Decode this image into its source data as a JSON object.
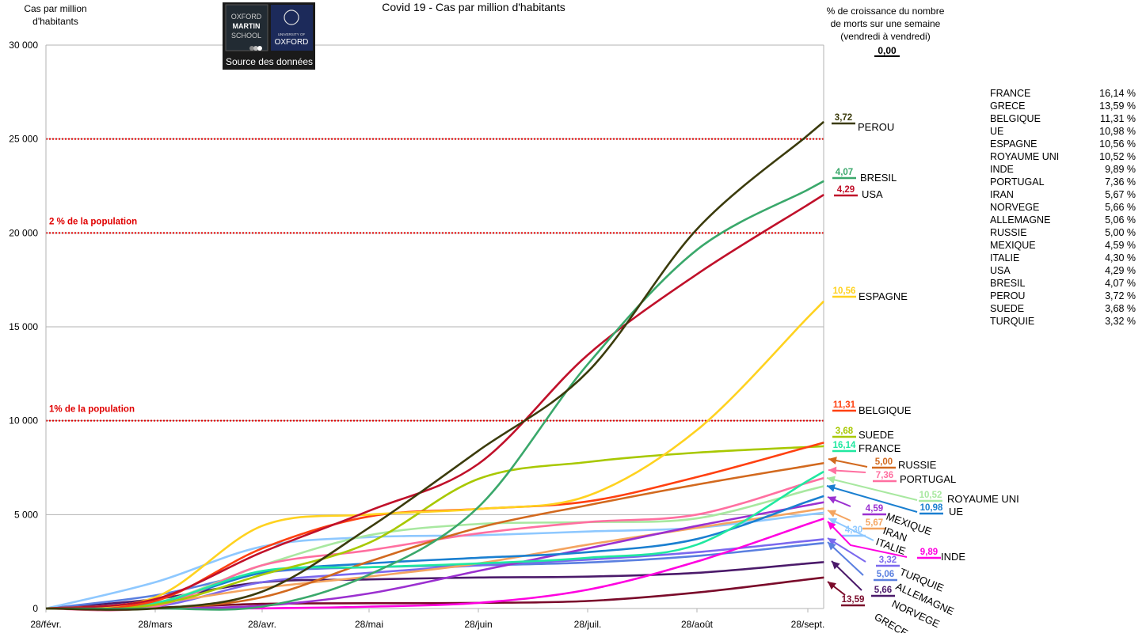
{
  "chart_data": {
    "type": "line",
    "title": "Covid 19 - Cas par million d'habitants",
    "ylabel": [
      "Cas par million",
      "d'habitants"
    ],
    "xlabel": "",
    "x": [
      "28/févr.",
      "28/mars",
      "28/avr.",
      "28/mai",
      "28/juin",
      "28/juil.",
      "28/août",
      "28/sept."
    ],
    "ylim": [
      0,
      30000
    ],
    "yticks": [
      "0",
      "5 000",
      "10 000",
      "15 000",
      "20 000",
      "25 000",
      "30 000"
    ],
    "ytick_values": [
      0,
      5000,
      10000,
      15000,
      20000,
      25000,
      30000
    ],
    "grid": true,
    "reference_lines": [
      {
        "value": 25000,
        "label": "",
        "color": "#e00000"
      },
      {
        "value": 20000,
        "label": "2 % de la population",
        "color": "#e00000"
      },
      {
        "value": 10000,
        "label": "1% de la population",
        "color": "#e00000"
      }
    ],
    "series": [
      {
        "name": "PEROU",
        "label_value": "3,72",
        "color": "#3b3b0c",
        "values": [
          0,
          0,
          900,
          4300,
          8400,
          12600,
          20200,
          25200
        ]
      },
      {
        "name": "BRESIL",
        "label_value": "4,07",
        "color": "#3aa86b",
        "values": [
          0,
          0,
          100,
          1800,
          5400,
          13000,
          19100,
          22300
        ]
      },
      {
        "name": "USA",
        "label_value": "4,29",
        "color": "#c0102a",
        "values": [
          0,
          500,
          3000,
          5200,
          7700,
          13500,
          17800,
          21500
        ]
      },
      {
        "name": "ESPAGNE",
        "label_value": "10,56",
        "color": "#ffd21f",
        "values": [
          0,
          600,
          4400,
          5000,
          5300,
          6000,
          9500,
          15500
        ]
      },
      {
        "name": "BELGIQUE",
        "label_value": "11,31",
        "color": "#ff4010",
        "values": [
          0,
          400,
          3200,
          4900,
          5300,
          5700,
          7000,
          8600
        ]
      },
      {
        "name": "SUEDE",
        "label_value": "3,68",
        "color": "#a8c800",
        "values": [
          0,
          200,
          1800,
          3500,
          6900,
          7800,
          8300,
          8600
        ]
      },
      {
        "name": "FRANCE",
        "label_value": "16,14",
        "color": "#20e8a0",
        "values": [
          0,
          300,
          2000,
          2200,
          2400,
          2700,
          3400,
          6800
        ]
      },
      {
        "name": "RUSSIE",
        "label_value": "5,00",
        "color": "#d2691e",
        "values": [
          0,
          10,
          600,
          2500,
          4300,
          5500,
          6600,
          7600
        ]
      },
      {
        "name": "PORTUGAL",
        "label_value": "7,36",
        "color": "#ff6fa0",
        "values": [
          0,
          100,
          2300,
          3100,
          4000,
          4600,
          5000,
          6700
        ]
      },
      {
        "name": "ROYAUME UNI",
        "label_value": "10,52",
        "color": "#a8e8a0",
        "values": [
          0,
          300,
          2300,
          3900,
          4500,
          4600,
          4800,
          6300
        ]
      },
      {
        "name": "UE",
        "label_value": "10,98",
        "color": "#1a7fd0",
        "values": [
          0,
          300,
          1900,
          2400,
          2700,
          3000,
          3700,
          5700
        ]
      },
      {
        "name": "MEXIQUE",
        "label_value": "4,59",
        "color": "#9b30d0",
        "values": [
          0,
          10,
          150,
          800,
          2000,
          3200,
          4400,
          5500
        ]
      },
      {
        "name": "IRAN",
        "label_value": "5,67",
        "color": "#f4a460",
        "values": [
          0,
          300,
          1100,
          1700,
          2400,
          3400,
          4300,
          5200
        ]
      },
      {
        "name": "ITALIE",
        "label_value": "4,30",
        "color": "#8ec8ff",
        "values": [
          0,
          1400,
          3300,
          3800,
          3900,
          4100,
          4300,
          5000
        ]
      },
      {
        "name": "INDE",
        "label_value": "9,89",
        "color": "#ff00e0",
        "values": [
          0,
          0,
          10,
          100,
          300,
          1000,
          2500,
          4500
        ]
      },
      {
        "name": "TURQUIE",
        "label_value": "3,32",
        "color": "#7b68ee",
        "values": [
          0,
          100,
          1400,
          1900,
          2300,
          2600,
          3000,
          3600
        ]
      },
      {
        "name": "ALLEMAGNE",
        "label_value": "5,06",
        "color": "#5a7fe0",
        "values": [
          0,
          700,
          1900,
          2200,
          2300,
          2450,
          2800,
          3400
        ]
      },
      {
        "name": "NORVEGE",
        "label_value": "5,66",
        "color": "#4b1a6a",
        "values": [
          0,
          500,
          1400,
          1550,
          1650,
          1700,
          1900,
          2400
        ]
      },
      {
        "name": "GRECE",
        "label_value": "13,59",
        "color": "#7a0a2a",
        "values": [
          0,
          50,
          250,
          280,
          300,
          400,
          850,
          1550
        ]
      }
    ]
  },
  "logo": {
    "oxford_martin": [
      "OXFORD",
      "MARTIN",
      "SCHOOL"
    ],
    "university": [
      "UNIVERSITY OF",
      "OXFORD"
    ],
    "source_link": "Source des données"
  },
  "growth_header": {
    "lines": [
      "% de croissance du nombre",
      "de morts sur une semaine",
      "(vendredi à vendredi)"
    ],
    "value": "0,00"
  },
  "growth_table": [
    {
      "country": "FRANCE",
      "value": "16,14 %"
    },
    {
      "country": "GRECE",
      "value": "13,59 %"
    },
    {
      "country": "BELGIQUE",
      "value": "11,31 %"
    },
    {
      "country": "UE",
      "value": "10,98 %"
    },
    {
      "country": "ESPAGNE",
      "value": "10,56 %"
    },
    {
      "country": "ROYAUME UNI",
      "value": "10,52 %"
    },
    {
      "country": "INDE",
      "value": "9,89 %"
    },
    {
      "country": "PORTUGAL",
      "value": "7,36 %"
    },
    {
      "country": "IRAN",
      "value": "5,67 %"
    },
    {
      "country": "NORVEGE",
      "value": "5,66 %"
    },
    {
      "country": "ALLEMAGNE",
      "value": "5,06 %"
    },
    {
      "country": "RUSSIE",
      "value": "5,00 %"
    },
    {
      "country": "MEXIQUE",
      "value": "4,59 %"
    },
    {
      "country": "ITALIE",
      "value": "4,30 %"
    },
    {
      "country": "USA",
      "value": "4,29 %"
    },
    {
      "country": "BRESIL",
      "value": "4,07 %"
    },
    {
      "country": "PEROU",
      "value": "3,72 %"
    },
    {
      "country": "SUEDE",
      "value": "3,68 %"
    },
    {
      "country": "TURQUIE",
      "value": "3,32 %"
    }
  ]
}
